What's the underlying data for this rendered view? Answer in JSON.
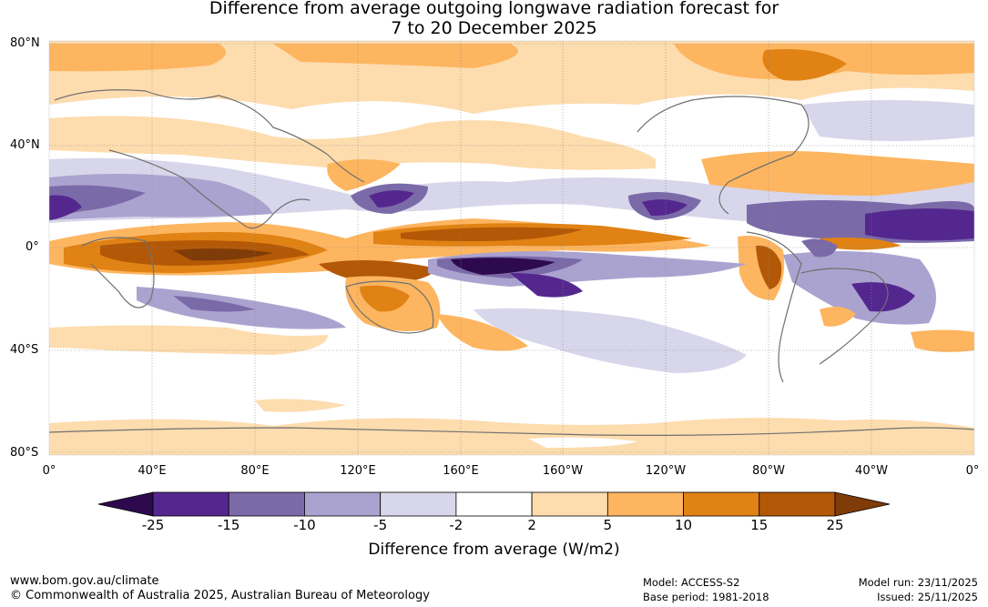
{
  "title": {
    "line1": "Difference from average outgoing longwave radiation forecast for",
    "line2": "7 to 20 December 2025"
  },
  "map": {
    "lat_labels": [
      "80°N",
      "40°N",
      "0°",
      "40°S",
      "80°S"
    ],
    "lon_labels": [
      "0°",
      "40°E",
      "80°E",
      "120°E",
      "160°E",
      "160°W",
      "120°W",
      "80°W",
      "40°W",
      "0°"
    ]
  },
  "colorbar": {
    "ticks": [
      "-25",
      "-15",
      "-10",
      "-5",
      "-2",
      "2",
      "5",
      "10",
      "15",
      "25"
    ],
    "label": "Difference from average (W/m2)",
    "colors": [
      "#2d0a4e",
      "#54278f",
      "#7b6aa8",
      "#aba3cf",
      "#d8d6ea",
      "#ffffff",
      "#fddcae",
      "#fdb560",
      "#e08214",
      "#b35806",
      "#7f3b08"
    ]
  },
  "footer": {
    "url": "www.bom.gov.au/climate",
    "copyright": "© Commonwealth of Australia 2025, Australian Bureau of Meteorology",
    "model": "Model: ACCESS-S2",
    "base_period": "Base period: 1981-2018",
    "model_run": "Model run: 23/11/2025",
    "issued": "Issued: 25/11/2025"
  }
}
